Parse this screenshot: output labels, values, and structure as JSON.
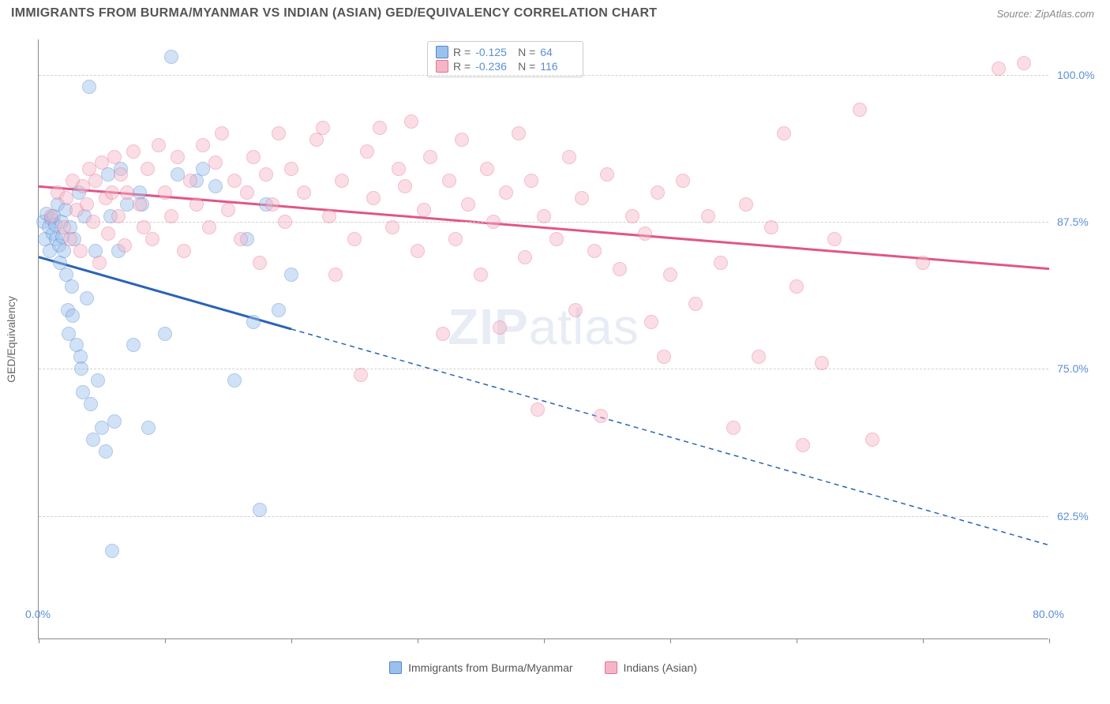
{
  "header": {
    "title": "IMMIGRANTS FROM BURMA/MYANMAR VS INDIAN (ASIAN) GED/EQUIVALENCY CORRELATION CHART",
    "source": "Source: ZipAtlas.com"
  },
  "watermark": {
    "part1": "ZIP",
    "part2": "atlas"
  },
  "chart": {
    "type": "scatter",
    "ylabel": "GED/Equivalency",
    "xlim": [
      0,
      80
    ],
    "ylim": [
      52,
      103
    ],
    "yticks": [
      62.5,
      75.0,
      87.5,
      100.0
    ],
    "ytick_labels": [
      "62.5%",
      "75.0%",
      "87.5%",
      "100.0%"
    ],
    "xticks": [
      0,
      10,
      20,
      30,
      40,
      50,
      60,
      70,
      80
    ],
    "xtick_labels_shown": {
      "0": "0.0%",
      "80": "80.0%"
    },
    "background": "#ffffff",
    "grid_color": "#d0d0d0",
    "axis_color": "#888888",
    "tick_label_color": "#5b8fd6",
    "marker_radius": 9,
    "marker_opacity": 0.45,
    "marker_border_alpha": 0.7,
    "series": [
      {
        "id": "burma",
        "label": "Immigrants from Burma/Myanmar",
        "fill_color": "#9cc0ec",
        "stroke_color": "#4d87d0",
        "line_color": "#2a63b5",
        "R": "-0.125",
        "N": "64",
        "regression": {
          "x1": 0,
          "y1": 84.5,
          "x2": 80,
          "y2": 60.0,
          "solid_until_x": 20
        },
        "points": [
          [
            0.4,
            87.5
          ],
          [
            0.5,
            86.0
          ],
          [
            0.6,
            88.2
          ],
          [
            0.8,
            87.0
          ],
          [
            0.9,
            85.0
          ],
          [
            1.0,
            87.8
          ],
          [
            1.1,
            86.5
          ],
          [
            1.2,
            88.0
          ],
          [
            1.3,
            87.2
          ],
          [
            1.4,
            86.0
          ],
          [
            1.5,
            89.0
          ],
          [
            1.6,
            85.5
          ],
          [
            1.7,
            84.0
          ],
          [
            1.8,
            87.5
          ],
          [
            1.9,
            86.2
          ],
          [
            2.0,
            85.0
          ],
          [
            2.1,
            88.5
          ],
          [
            2.2,
            83.0
          ],
          [
            2.3,
            80.0
          ],
          [
            2.4,
            78.0
          ],
          [
            2.5,
            87.0
          ],
          [
            2.6,
            82.0
          ],
          [
            2.7,
            79.5
          ],
          [
            2.8,
            86.0
          ],
          [
            3.0,
            77.0
          ],
          [
            3.2,
            90.0
          ],
          [
            3.3,
            76.0
          ],
          [
            3.4,
            75.0
          ],
          [
            3.5,
            73.0
          ],
          [
            3.6,
            88.0
          ],
          [
            3.8,
            81.0
          ],
          [
            4.0,
            99.0
          ],
          [
            4.1,
            72.0
          ],
          [
            4.3,
            69.0
          ],
          [
            4.5,
            85.0
          ],
          [
            4.7,
            74.0
          ],
          [
            5.0,
            70.0
          ],
          [
            5.3,
            68.0
          ],
          [
            5.5,
            91.5
          ],
          [
            5.7,
            88.0
          ],
          [
            5.8,
            59.5
          ],
          [
            6.0,
            70.5
          ],
          [
            6.3,
            85.0
          ],
          [
            6.5,
            92.0
          ],
          [
            7.0,
            89.0
          ],
          [
            7.5,
            77.0
          ],
          [
            8.0,
            90.0
          ],
          [
            8.2,
            89.0
          ],
          [
            8.7,
            70.0
          ],
          [
            10.0,
            78.0
          ],
          [
            10.5,
            101.5
          ],
          [
            11.0,
            91.5
          ],
          [
            12.5,
            91.0
          ],
          [
            13.0,
            92.0
          ],
          [
            14.0,
            90.5
          ],
          [
            15.5,
            74.0
          ],
          [
            16.5,
            86.0
          ],
          [
            17.0,
            79.0
          ],
          [
            17.5,
            63.0
          ],
          [
            18.0,
            89.0
          ],
          [
            19.0,
            80.0
          ],
          [
            20.0,
            83.0
          ]
        ]
      },
      {
        "id": "indian",
        "label": "Indians (Asian)",
        "fill_color": "#f4b6c6",
        "stroke_color": "#e77096",
        "line_color": "#e15686",
        "R": "-0.236",
        "N": "116",
        "regression": {
          "x1": 0,
          "y1": 90.5,
          "x2": 80,
          "y2": 83.5,
          "solid_until_x": 80
        },
        "points": [
          [
            1.0,
            88.0
          ],
          [
            1.5,
            90.0
          ],
          [
            2.0,
            87.0
          ],
          [
            2.2,
            89.5
          ],
          [
            2.5,
            86.0
          ],
          [
            2.7,
            91.0
          ],
          [
            3.0,
            88.5
          ],
          [
            3.3,
            85.0
          ],
          [
            3.5,
            90.5
          ],
          [
            3.8,
            89.0
          ],
          [
            4.0,
            92.0
          ],
          [
            4.3,
            87.5
          ],
          [
            4.5,
            91.0
          ],
          [
            4.8,
            84.0
          ],
          [
            5.0,
            92.5
          ],
          [
            5.3,
            89.5
          ],
          [
            5.5,
            86.5
          ],
          [
            5.8,
            90.0
          ],
          [
            6.0,
            93.0
          ],
          [
            6.3,
            88.0
          ],
          [
            6.5,
            91.5
          ],
          [
            6.8,
            85.5
          ],
          [
            7.0,
            90.0
          ],
          [
            7.5,
            93.5
          ],
          [
            8.0,
            89.0
          ],
          [
            8.3,
            87.0
          ],
          [
            8.6,
            92.0
          ],
          [
            9.0,
            86.0
          ],
          [
            9.5,
            94.0
          ],
          [
            10.0,
            90.0
          ],
          [
            10.5,
            88.0
          ],
          [
            11.0,
            93.0
          ],
          [
            11.5,
            85.0
          ],
          [
            12.0,
            91.0
          ],
          [
            12.5,
            89.0
          ],
          [
            13.0,
            94.0
          ],
          [
            13.5,
            87.0
          ],
          [
            14.0,
            92.5
          ],
          [
            14.5,
            95.0
          ],
          [
            15.0,
            88.5
          ],
          [
            15.5,
            91.0
          ],
          [
            16.0,
            86.0
          ],
          [
            16.5,
            90.0
          ],
          [
            17.0,
            93.0
          ],
          [
            17.5,
            84.0
          ],
          [
            18.0,
            91.5
          ],
          [
            18.5,
            89.0
          ],
          [
            19.0,
            95.0
          ],
          [
            19.5,
            87.5
          ],
          [
            20.0,
            92.0
          ],
          [
            21.0,
            90.0
          ],
          [
            22.0,
            94.5
          ],
          [
            22.5,
            95.5
          ],
          [
            23.0,
            88.0
          ],
          [
            23.5,
            83.0
          ],
          [
            24.0,
            91.0
          ],
          [
            25.0,
            86.0
          ],
          [
            25.5,
            74.5
          ],
          [
            26.0,
            93.5
          ],
          [
            26.5,
            89.5
          ],
          [
            27.0,
            95.5
          ],
          [
            28.0,
            87.0
          ],
          [
            28.5,
            92.0
          ],
          [
            29.0,
            90.5
          ],
          [
            29.5,
            96.0
          ],
          [
            30.0,
            85.0
          ],
          [
            30.5,
            88.5
          ],
          [
            31.0,
            93.0
          ],
          [
            32.0,
            78.0
          ],
          [
            32.5,
            91.0
          ],
          [
            33.0,
            86.0
          ],
          [
            33.5,
            94.5
          ],
          [
            34.0,
            89.0
          ],
          [
            35.0,
            83.0
          ],
          [
            35.5,
            92.0
          ],
          [
            36.0,
            87.5
          ],
          [
            36.5,
            78.5
          ],
          [
            37.0,
            90.0
          ],
          [
            38.0,
            95.0
          ],
          [
            38.5,
            84.5
          ],
          [
            39.0,
            91.0
          ],
          [
            39.5,
            71.5
          ],
          [
            40.0,
            88.0
          ],
          [
            41.0,
            86.0
          ],
          [
            42.0,
            93.0
          ],
          [
            42.5,
            80.0
          ],
          [
            43.0,
            89.5
          ],
          [
            44.0,
            85.0
          ],
          [
            44.5,
            71.0
          ],
          [
            45.0,
            91.5
          ],
          [
            46.0,
            83.5
          ],
          [
            47.0,
            88.0
          ],
          [
            48.0,
            86.5
          ],
          [
            48.5,
            79.0
          ],
          [
            49.0,
            90.0
          ],
          [
            49.5,
            76.0
          ],
          [
            50.0,
            83.0
          ],
          [
            51.0,
            91.0
          ],
          [
            52.0,
            80.5
          ],
          [
            53.0,
            88.0
          ],
          [
            54.0,
            84.0
          ],
          [
            55.0,
            70.0
          ],
          [
            56.0,
            89.0
          ],
          [
            57.0,
            76.0
          ],
          [
            58.0,
            87.0
          ],
          [
            59.0,
            95.0
          ],
          [
            60.0,
            82.0
          ],
          [
            60.5,
            68.5
          ],
          [
            62.0,
            75.5
          ],
          [
            63.0,
            86.0
          ],
          [
            65.0,
            97.0
          ],
          [
            66.0,
            69.0
          ],
          [
            70.0,
            84.0
          ],
          [
            76.0,
            100.5
          ],
          [
            78.0,
            101.0
          ]
        ]
      }
    ]
  },
  "legend_stats": {
    "r_label": "R =",
    "n_label": "N ="
  }
}
